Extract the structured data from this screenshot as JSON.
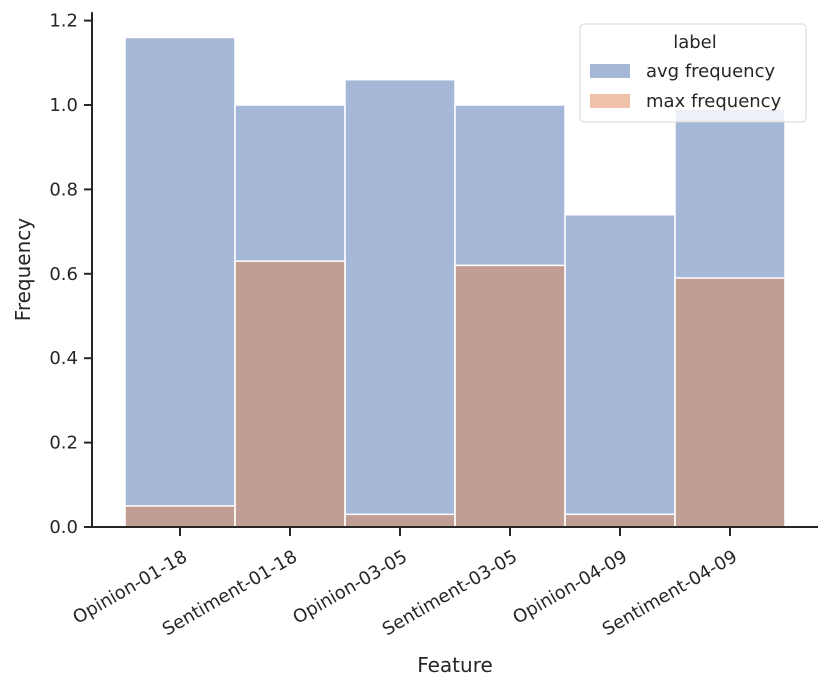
{
  "chart_data": {
    "type": "bar",
    "title": "",
    "xlabel": "Feature",
    "ylabel": "Frequency",
    "ylim": [
      0,
      1.22
    ],
    "yticks": [
      0.0,
      0.2,
      0.4,
      0.6,
      0.8,
      1.0,
      1.2
    ],
    "ytick_labels": [
      "0.0",
      "0.2",
      "0.4",
      "0.6",
      "0.8",
      "1.0",
      "1.2"
    ],
    "categories": [
      "Opinion-01-18",
      "Sentiment-01-18",
      "Opinion-03-05",
      "Sentiment-03-05",
      "Opinion-04-09",
      "Sentiment-04-09"
    ],
    "legend": {
      "title": "label",
      "placement": "top-right"
    },
    "series": [
      {
        "name": "avg frequency",
        "color": "#4c72b0",
        "opacity": 0.5,
        "values": [
          1.16,
          1.0,
          1.06,
          1.0,
          0.74,
          0.99
        ]
      },
      {
        "name": "max frequency",
        "color": "#dd8452",
        "opacity": 0.5,
        "values": [
          0.05,
          0.63,
          0.03,
          0.62,
          0.03,
          0.59
        ]
      }
    ],
    "grid": false
  }
}
